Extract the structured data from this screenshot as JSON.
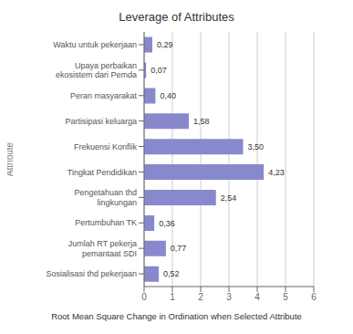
{
  "chart_data": {
    "type": "bar",
    "orientation": "horizontal",
    "title": "Leverage of Attributes",
    "xlabel": "Root Mean Square Change in Ordination when Selected Attribute",
    "ylabel": "Attribute",
    "categories": [
      "Waktu untuk pekerjaan",
      "Upaya perbaikan\nekosistem dari Pemda",
      "Peran masyarakat",
      "Partisipasi keluarga",
      "Frekuensi Konflik",
      "Tingkat Pendidikan",
      "Pengetahuan thd\nlingkungan",
      "Pertumbuhan TK",
      "Jumlah RT pekerja\npemantaat SDI",
      "Sosialisasi thd pekerjaan"
    ],
    "values": [
      0.29,
      0.07,
      0.4,
      1.58,
      3.5,
      4.23,
      2.54,
      0.36,
      0.77,
      0.52
    ],
    "value_labels": [
      "0,29",
      "0,07",
      "0,40",
      "1,58",
      "3,50",
      "4,23",
      "2,54",
      "0,36",
      "0,77",
      "0,52"
    ],
    "data_labels": true,
    "color": "#8888cc",
    "xlim": [
      0,
      6
    ],
    "xticks": [
      0,
      1,
      2,
      3,
      4,
      5,
      6
    ],
    "grid": true
  }
}
